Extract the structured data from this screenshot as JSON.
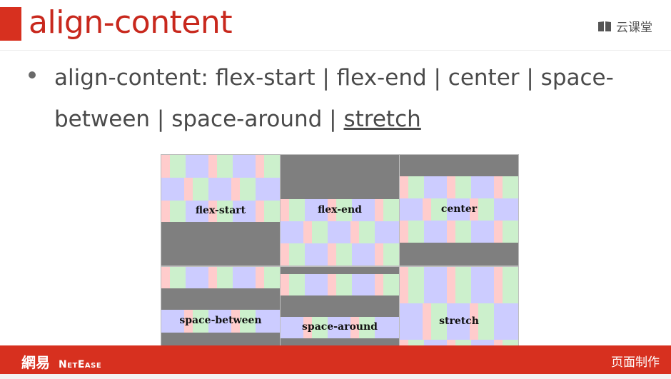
{
  "header": {
    "title": "align-content",
    "brand": "云课堂",
    "brand_icon": "book-icon"
  },
  "content": {
    "line1": "align-content: flex-start | flex-end | center | space-",
    "line2_prefix": "between | space-around | ",
    "line2_underlined": "stretch"
  },
  "demo": {
    "labels": [
      "flex-start",
      "flex-end",
      "center",
      "space-between",
      "space-around",
      "stretch"
    ],
    "colors": {
      "pink": "#ffcccc",
      "green": "#ccf0cc",
      "blue": "#ccccff",
      "gray": "#808080"
    }
  },
  "footer": {
    "logo_cn": "網易",
    "logo_en": "NetEase",
    "right_text": "页面制作",
    "accent": "#d7301f"
  }
}
